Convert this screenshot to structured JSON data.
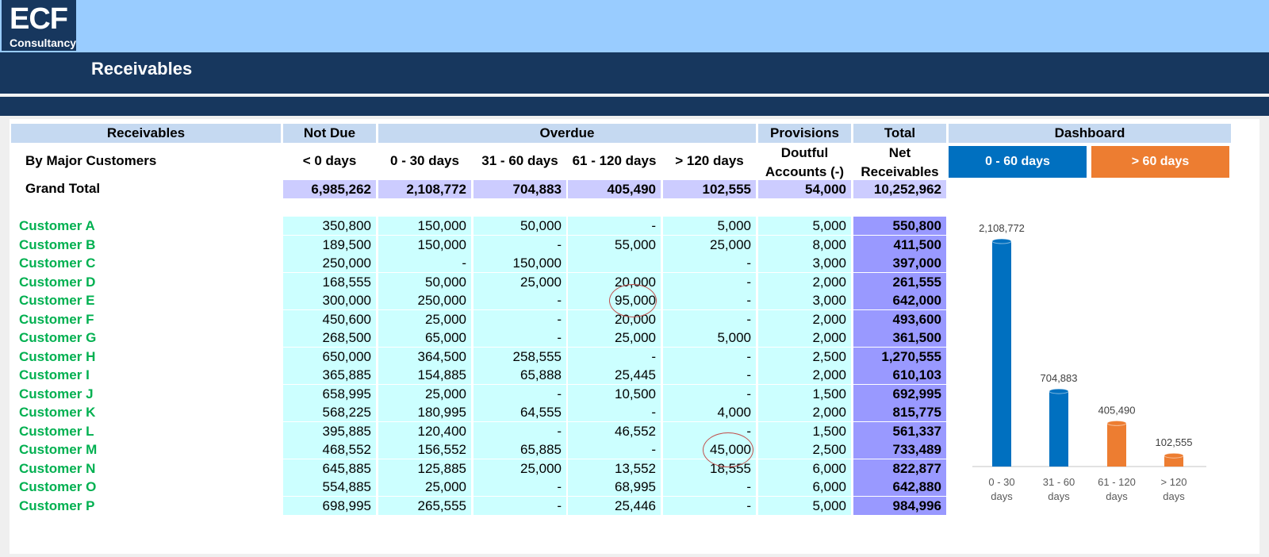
{
  "logo": {
    "big": "ECF",
    "small": "Consultancy"
  },
  "page_title": "Receivables",
  "headers": {
    "receivables": "Receivables",
    "not_due": "Not Due",
    "overdue": "Overdue",
    "provisions": "Provisions",
    "total": "Total",
    "dashboard": "Dashboard"
  },
  "subheaders": {
    "by_major": "By Major Customers",
    "lt0": "< 0 days",
    "d0_30": "0 - 30 days",
    "d31_60": "31 - 60 days",
    "d61_120": "61 - 120 days",
    "gt120": "> 120 days",
    "doubtful_1": "Doutful",
    "doubtful_2": "Accounts (-)",
    "net_1": "Net",
    "net_2": "Receivables"
  },
  "buttons": {
    "b0_60": "0 - 60 days",
    "b60": "> 60 days"
  },
  "grand_total": {
    "label": "Grand Total",
    "values": [
      "6,985,262",
      "2,108,772",
      "704,883",
      "405,490",
      "102,555",
      "54,000",
      "10,252,962"
    ]
  },
  "rows": [
    {
      "name": "Customer A",
      "values": [
        "350,800",
        "150,000",
        "50,000",
        "-",
        "5,000",
        "5,000",
        "550,800"
      ]
    },
    {
      "name": "Customer B",
      "values": [
        "189,500",
        "150,000",
        "-",
        "55,000",
        "25,000",
        "8,000",
        "411,500"
      ]
    },
    {
      "name": "Customer C",
      "values": [
        "250,000",
        "-",
        "150,000",
        "",
        "-",
        "3,000",
        "397,000"
      ]
    },
    {
      "name": "Customer D",
      "values": [
        "168,555",
        "50,000",
        "25,000",
        "20,000",
        "-",
        "2,000",
        "261,555"
      ]
    },
    {
      "name": "Customer E",
      "values": [
        "300,000",
        "250,000",
        "-",
        "95,000",
        "-",
        "3,000",
        "642,000"
      ]
    },
    {
      "name": "Customer F",
      "values": [
        "450,600",
        "25,000",
        "-",
        "20,000",
        "-",
        "2,000",
        "493,600"
      ]
    },
    {
      "name": "Customer G",
      "values": [
        "268,500",
        "65,000",
        "-",
        "25,000",
        "5,000",
        "2,000",
        "361,500"
      ]
    },
    {
      "name": "Customer H",
      "values": [
        "650,000",
        "364,500",
        "258,555",
        "-",
        "-",
        "2,500",
        "1,270,555"
      ]
    },
    {
      "name": "Customer I",
      "values": [
        "365,885",
        "154,885",
        "65,888",
        "25,445",
        "-",
        "2,000",
        "610,103"
      ]
    },
    {
      "name": "Customer J",
      "values": [
        "658,995",
        "25,000",
        "-",
        "10,500",
        "-",
        "1,500",
        "692,995"
      ]
    },
    {
      "name": "Customer K",
      "values": [
        "568,225",
        "180,995",
        "64,555",
        "-",
        "4,000",
        "2,000",
        "815,775"
      ]
    },
    {
      "name": "Customer L",
      "values": [
        "395,885",
        "120,400",
        "-",
        "46,552",
        "-",
        "1,500",
        "561,337"
      ]
    },
    {
      "name": "Customer M",
      "values": [
        "468,552",
        "156,552",
        "65,885",
        "-",
        "45,000",
        "2,500",
        "733,489"
      ]
    },
    {
      "name": "Customer N",
      "values": [
        "645,885",
        "125,885",
        "25,000",
        "13,552",
        "18,555",
        "6,000",
        "822,877"
      ]
    },
    {
      "name": "Customer O",
      "values": [
        "554,885",
        "25,000",
        "-",
        "68,995",
        "-",
        "6,000",
        "642,880"
      ]
    },
    {
      "name": "Customer P",
      "values": [
        "698,995",
        "265,555",
        "-",
        "25,446",
        "-",
        "5,000",
        "984,996"
      ]
    }
  ],
  "chart_data": {
    "type": "bar",
    "categories": [
      "0 - 30 days",
      "31 - 60 days",
      "61 - 120 days",
      "> 120 days"
    ],
    "category_lines": [
      [
        "0 - 30",
        "days"
      ],
      [
        "31 - 60",
        "days"
      ],
      [
        "61 - 120",
        "days"
      ],
      [
        "> 120",
        "days"
      ]
    ],
    "values": [
      2108772,
      704883,
      405490,
      102555
    ],
    "value_labels": [
      "2,108,772",
      "704,883",
      "405,490",
      "102,555"
    ],
    "colors": [
      "#0070c0",
      "#0070c0",
      "#ed7d31",
      "#ed7d31"
    ],
    "ylim": [
      0,
      2108772
    ],
    "grid": false,
    "legend": "none"
  },
  "colors": {
    "header_bg": "#c5d9f1",
    "grand_total_bg": "#ccccff",
    "cell_bg": "#ccffff",
    "total_bg": "#9999ff",
    "customer_text": "#00b050",
    "dark_blue": "#17375e",
    "light_blue": "#99ccff",
    "btn_blue": "#0070c0",
    "btn_orange": "#ed7d31"
  }
}
